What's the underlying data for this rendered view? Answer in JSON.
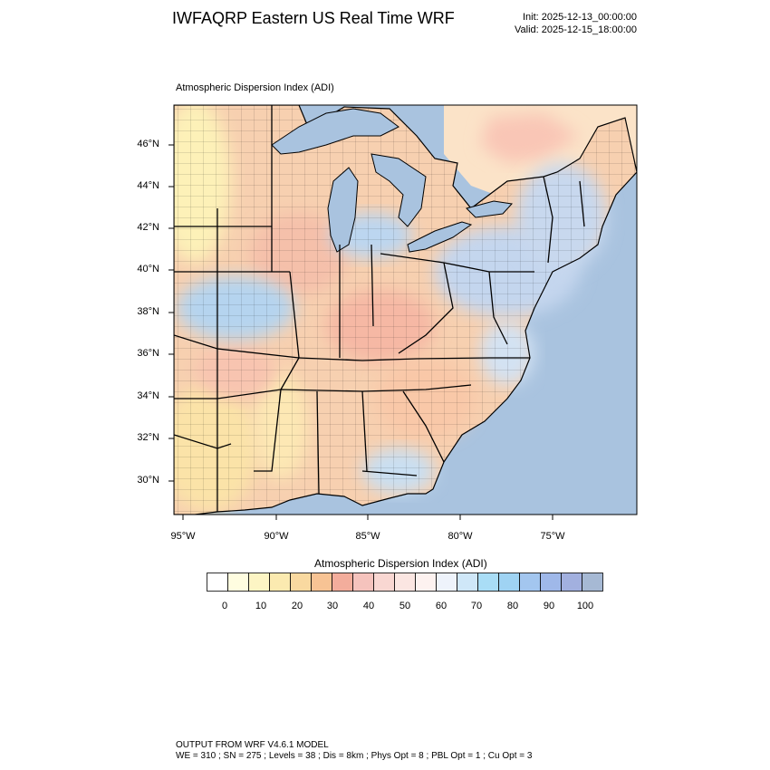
{
  "header": {
    "title": "IWFAQRP Eastern US Real Time WRF",
    "init": "Init: 2025-12-13_00:00:00",
    "valid": "Valid: 2025-12-15_18:00:00"
  },
  "map": {
    "field_title": "Atmospheric Dispersion Index   (ADI)",
    "lat_labels": [
      "46°N",
      "44°N",
      "42°N",
      "40°N",
      "38°N",
      "36°N",
      "34°N",
      "32°N",
      "30°N"
    ],
    "lon_labels": [
      "95°W",
      "90°W",
      "85°W",
      "80°W",
      "75°W"
    ],
    "colors": {
      "water": "#a9c3df",
      "land_low": "#fdf5c0",
      "land_mid": "#f7c9a8",
      "land_high": "#cfe0f2",
      "border": "#000000"
    }
  },
  "colorbar": {
    "title": "Atmospheric Dispersion Index  (ADI)",
    "labels": [
      "0",
      "10",
      "20",
      "30",
      "40",
      "50",
      "60",
      "70",
      "80",
      "90",
      "100"
    ],
    "colors": [
      "#ffffff",
      "#fffde0",
      "#fdf5c4",
      "#fbeab0",
      "#f9d9a0",
      "#f7c394",
      "#f3ad9c",
      "#f5c3bd",
      "#f9d7d2",
      "#fbe6e2",
      "#fdf2f0",
      "#eef3fb",
      "#cfe7f8",
      "#a9ddf6",
      "#9fd3f3",
      "#a3c6ef",
      "#9fb8e9",
      "#a2b0df",
      "#a6b9d4"
    ]
  },
  "footer": {
    "line1": "OUTPUT FROM WRF V4.6.1 MODEL",
    "line2": "WE = 310 ; SN = 275 ; Levels = 38 ; Dis = 8km ; Phys Opt = 8 ; PBL Opt = 1 ; Cu Opt = 3"
  }
}
